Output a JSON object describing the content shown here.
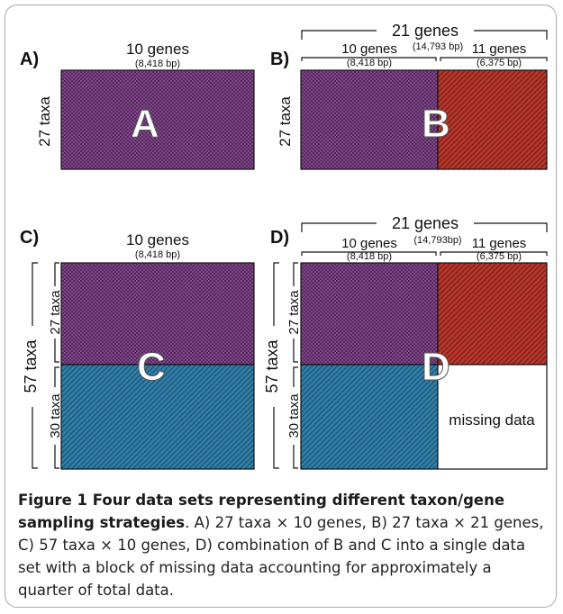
{
  "panels": {
    "a": {
      "letter": "A)",
      "genes": "10 genes",
      "bp": "(8,418 bp)",
      "taxa": "27 taxa",
      "block": "A"
    },
    "b": {
      "letter": "B)",
      "total_genes": "21 genes",
      "total_bp": "(14,793 bp)",
      "left_genes": "10 genes",
      "left_bp": "(8,418 bp)",
      "right_genes": "11 genes",
      "right_bp": "(6,375 bp)",
      "taxa": "27 taxa",
      "block": "B"
    },
    "c": {
      "letter": "C)",
      "genes": "10 genes",
      "bp": "(8,418 bp)",
      "total_taxa": "57 taxa",
      "top_taxa": "27 taxa",
      "bottom_taxa": "30 taxa",
      "block": "C"
    },
    "d": {
      "letter": "D)",
      "total_genes": "21 genes",
      "total_bp": "(14,793bp)",
      "left_genes": "10 genes",
      "left_bp": "(8,418 bp)",
      "right_genes": "11 genes",
      "right_bp": "(6,375 bp)",
      "total_taxa": "57 taxa",
      "top_taxa": "27 taxa",
      "bottom_taxa": "30 taxa",
      "block": "D",
      "missing": "missing data"
    }
  },
  "colors": {
    "purple": "#4a2458",
    "red": "#b6362a",
    "blue": "#2f7ea8",
    "border": "#a9a9a9"
  },
  "caption": {
    "lead": "Figure 1 Four data sets representing different taxon/gene sampling strategies",
    "body": ". A) 27 taxa × 10 genes, B) 27 taxa × 21 genes, C) 57 taxa × 10 genes, D) combination of B and C into a single data set with a block of missing data accounting for approximately a quarter of total data."
  }
}
